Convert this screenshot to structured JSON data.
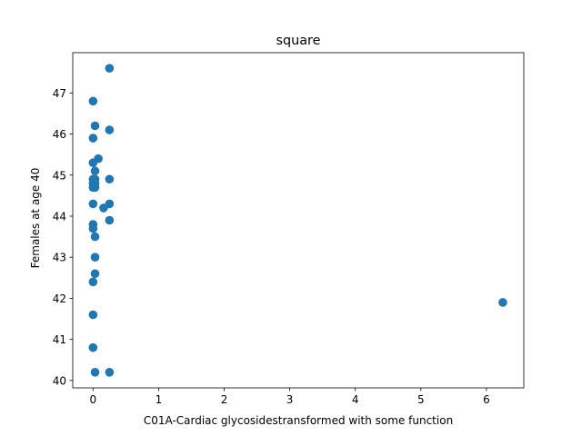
{
  "chart_data": {
    "type": "scatter",
    "title": "square",
    "xlabel": "C01A-Cardiac glycosidestransformed with some function",
    "ylabel": "Females at age 40",
    "xlim": [
      -0.31,
      6.57
    ],
    "ylim": [
      39.82,
      47.98
    ],
    "xticks": [
      "0",
      "1",
      "2",
      "3",
      "4",
      "5",
      "6"
    ],
    "yticks": [
      "40",
      "41",
      "42",
      "43",
      "44",
      "45",
      "46",
      "47"
    ],
    "grid": false,
    "marker_color": "#1f77b4",
    "points": [
      {
        "x": 0.25,
        "y": 47.6
      },
      {
        "x": 0.0,
        "y": 46.8
      },
      {
        "x": 0.03,
        "y": 46.2
      },
      {
        "x": 0.25,
        "y": 46.1
      },
      {
        "x": 0.0,
        "y": 45.9
      },
      {
        "x": 0.08,
        "y": 45.4
      },
      {
        "x": 0.0,
        "y": 45.3
      },
      {
        "x": 0.03,
        "y": 45.1
      },
      {
        "x": 0.0,
        "y": 44.9
      },
      {
        "x": 0.03,
        "y": 44.9
      },
      {
        "x": 0.25,
        "y": 44.9
      },
      {
        "x": 0.0,
        "y": 44.8
      },
      {
        "x": 0.03,
        "y": 44.8
      },
      {
        "x": 0.0,
        "y": 44.7
      },
      {
        "x": 0.03,
        "y": 44.7
      },
      {
        "x": 0.0,
        "y": 44.3
      },
      {
        "x": 0.25,
        "y": 44.3
      },
      {
        "x": 0.16,
        "y": 44.2
      },
      {
        "x": 0.25,
        "y": 43.9
      },
      {
        "x": 0.0,
        "y": 43.8
      },
      {
        "x": 0.0,
        "y": 43.7
      },
      {
        "x": 0.03,
        "y": 43.5
      },
      {
        "x": 0.03,
        "y": 43.0
      },
      {
        "x": 0.03,
        "y": 42.6
      },
      {
        "x": 0.0,
        "y": 42.4
      },
      {
        "x": 6.25,
        "y": 41.9
      },
      {
        "x": 0.0,
        "y": 41.6
      },
      {
        "x": 0.0,
        "y": 40.8
      },
      {
        "x": 0.03,
        "y": 40.2
      },
      {
        "x": 0.25,
        "y": 40.2
      }
    ]
  }
}
